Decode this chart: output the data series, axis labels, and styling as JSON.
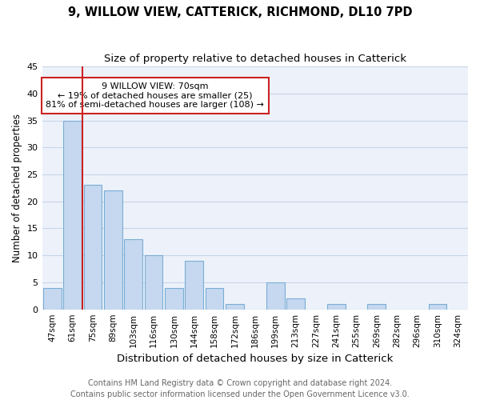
{
  "title1": "9, WILLOW VIEW, CATTERICK, RICHMOND, DL10 7PD",
  "title2": "Size of property relative to detached houses in Catterick",
  "xlabel": "Distribution of detached houses by size in Catterick",
  "ylabel": "Number of detached properties",
  "categories": [
    "47sqm",
    "61sqm",
    "75sqm",
    "89sqm",
    "103sqm",
    "116sqm",
    "130sqm",
    "144sqm",
    "158sqm",
    "172sqm",
    "186sqm",
    "199sqm",
    "213sqm",
    "227sqm",
    "241sqm",
    "255sqm",
    "269sqm",
    "282sqm",
    "296sqm",
    "310sqm",
    "324sqm"
  ],
  "values": [
    4,
    35,
    23,
    22,
    13,
    10,
    4,
    9,
    4,
    1,
    0,
    5,
    2,
    0,
    1,
    0,
    1,
    0,
    0,
    1,
    0
  ],
  "bar_color": "#c5d8f0",
  "bar_edge_color": "#7aadd4",
  "marker_line_color": "#cc2222",
  "annotation_box_color": "#ffffff",
  "annotation_box_edge_color": "#cc2222",
  "annotation_text": "9 WILLOW VIEW: 70sqm\n← 19% of detached houses are smaller (25)\n81% of semi-detached houses are larger (108) →",
  "annotation_fontsize": 8,
  "ylim": [
    0,
    45
  ],
  "yticks": [
    0,
    5,
    10,
    15,
    20,
    25,
    30,
    35,
    40,
    45
  ],
  "footnote": "Contains HM Land Registry data © Crown copyright and database right 2024.\nContains public sector information licensed under the Open Government Licence v3.0.",
  "title1_fontsize": 10.5,
  "title2_fontsize": 9.5,
  "xlabel_fontsize": 9.5,
  "ylabel_fontsize": 8.5,
  "footnote_fontsize": 7,
  "grid_color": "#c8d4e8",
  "background_color": "#edf2fa"
}
